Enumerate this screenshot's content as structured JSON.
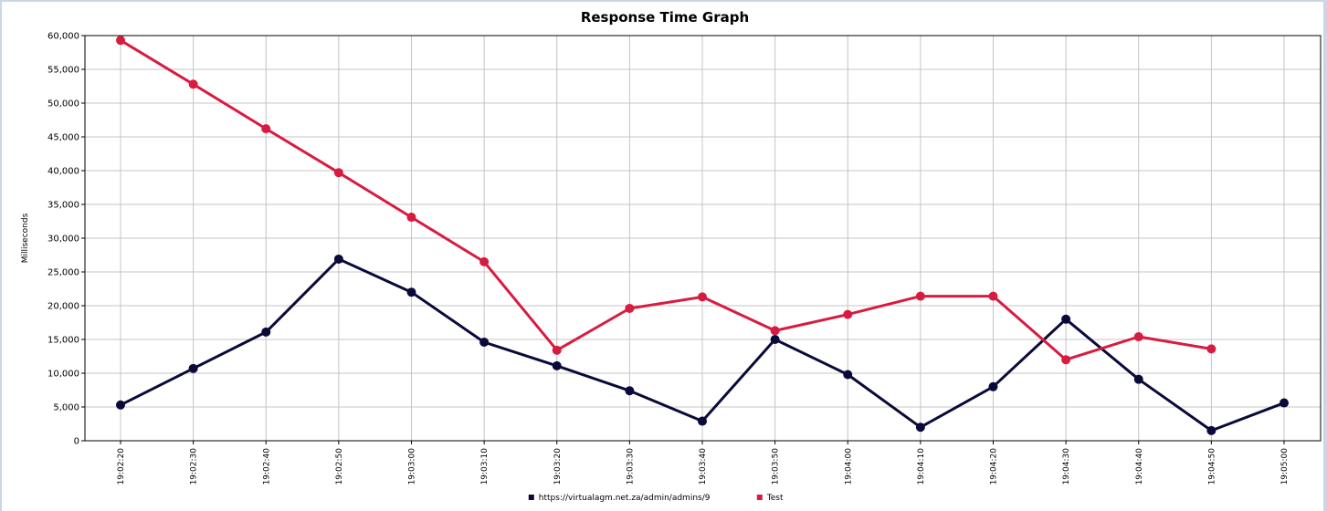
{
  "chart_data": {
    "type": "line",
    "title": "Response Time Graph",
    "xlabel": "",
    "ylabel": "Milliseconds",
    "ylim": [
      0,
      60000
    ],
    "yticks": [
      "0",
      "5,000",
      "10,000",
      "15,000",
      "20,000",
      "25,000",
      "30,000",
      "35,000",
      "40,000",
      "45,000",
      "50,000",
      "55,000",
      "60,000"
    ],
    "categories": [
      "19:02:20",
      "19:02:30",
      "19:02:40",
      "19:02:50",
      "19:03:00",
      "19:03:10",
      "19:03:20",
      "19:03:30",
      "19:03:40",
      "19:03:50",
      "19:04:00",
      "19:04:10",
      "19:04:20",
      "19:04:30",
      "19:04:40",
      "19:04:50",
      "19:05:00"
    ],
    "grid": "horizontal",
    "legend_position": "bottom-center",
    "series": [
      {
        "name": "https://virtualagm.net.za/admin/admins/9",
        "color": "#0a0a3a",
        "values": [
          5300,
          10700,
          16100,
          26900,
          22000,
          14600,
          11100,
          7400,
          2900,
          15000,
          9800,
          2000,
          8000,
          18000,
          9100,
          1500,
          5600
        ]
      },
      {
        "name": "Test",
        "color": "#d81b40",
        "values": [
          59300,
          52800,
          46200,
          39700,
          33100,
          26500,
          13400,
          19600,
          21300,
          16300,
          18700,
          21400,
          21400,
          12000,
          15400,
          13600,
          null
        ]
      }
    ]
  }
}
